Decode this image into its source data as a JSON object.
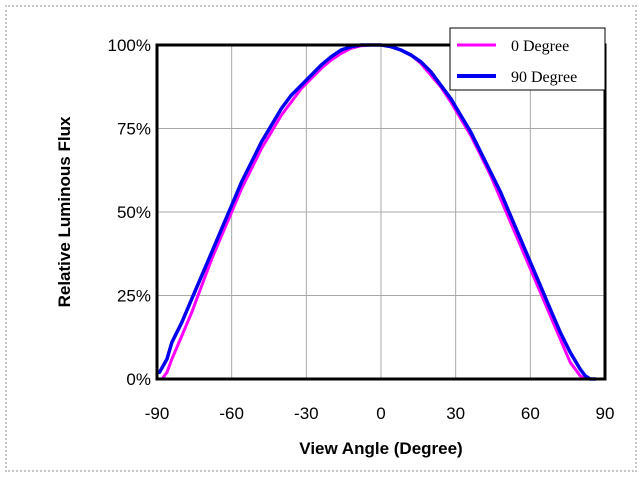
{
  "chart_data": {
    "type": "line",
    "xlabel": "View Angle (Degree)",
    "ylabel": "Relative Luminous Flux",
    "xlim": [
      -90,
      90
    ],
    "ylim": [
      0,
      100
    ],
    "xticks": [
      -90,
      -60,
      -30,
      0,
      30,
      60,
      90
    ],
    "yticks": [
      0,
      25,
      50,
      75,
      100
    ],
    "xtick_labels": [
      "-90",
      "-60",
      "-30",
      "0",
      "30",
      "60",
      "90"
    ],
    "ytick_labels": [
      "0%",
      "25%",
      "50%",
      "75%",
      "100%"
    ],
    "grid": true,
    "legend_position": "top-right",
    "series": [
      {
        "name": "0 Degree",
        "color": "#ff00ff",
        "x": [
          -88,
          -86,
          -84,
          -80,
          -76,
          -72,
          -68,
          -64,
          -60,
          -56,
          -52,
          -48,
          -44,
          -40,
          -36,
          -32,
          -28,
          -24,
          -20,
          -16,
          -12,
          -8,
          -4,
          0,
          4,
          8,
          12,
          16,
          20,
          24,
          28,
          32,
          36,
          40,
          44,
          48,
          52,
          56,
          60,
          64,
          68,
          72,
          76,
          80,
          82,
          84,
          86
        ],
        "y": [
          0,
          2,
          6,
          13,
          20,
          28,
          36,
          43,
          50,
          57,
          63,
          69,
          74,
          79,
          83,
          87,
          90,
          93,
          95.5,
          97.5,
          99,
          99.8,
          100,
          100,
          99.5,
          98.5,
          97,
          94.5,
          91,
          87.5,
          83,
          78,
          73,
          67,
          61,
          54,
          47,
          40,
          33,
          26,
          19,
          12,
          5,
          1,
          0,
          0,
          0
        ]
      },
      {
        "name": "90 Degree",
        "color": "#0000ee",
        "x": [
          -89,
          -86,
          -84,
          -80,
          -76,
          -72,
          -68,
          -64,
          -60,
          -56,
          -52,
          -48,
          -44,
          -40,
          -36,
          -32,
          -28,
          -24,
          -20,
          -16,
          -12,
          -8,
          -4,
          0,
          4,
          8,
          12,
          16,
          20,
          24,
          28,
          32,
          36,
          40,
          44,
          48,
          52,
          56,
          60,
          64,
          68,
          72,
          76,
          80,
          82,
          84,
          86
        ],
        "y": [
          2,
          6,
          11,
          17,
          24,
          31,
          38,
          45,
          52,
          59,
          65,
          71,
          76,
          81,
          85,
          88,
          91,
          94,
          96.5,
          98.5,
          99.5,
          100,
          100,
          100,
          99.5,
          98.5,
          97,
          95,
          92,
          88,
          84,
          79,
          74,
          68,
          62,
          56,
          49,
          42,
          35,
          28,
          21,
          14,
          8,
          3,
          1,
          0,
          0
        ]
      }
    ]
  }
}
